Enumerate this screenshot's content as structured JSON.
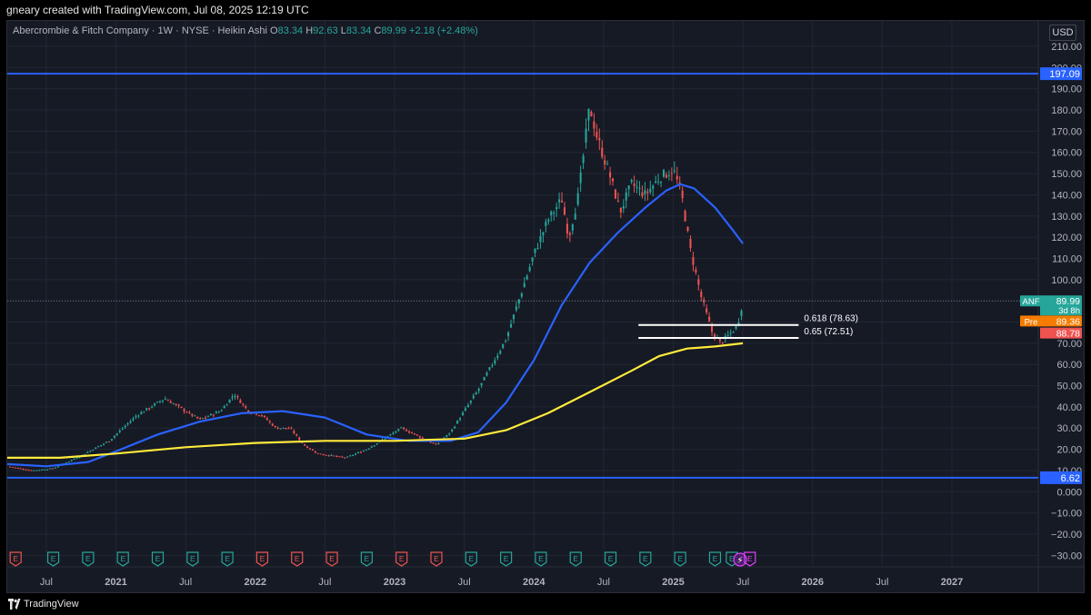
{
  "watermark": "gneary created with TradingView.com, Jul 08, 2025 12:19 UTC",
  "legend": {
    "title": "Abercrombie & Fitch Company · 1W · NYSE · Heikin Ashi",
    "o_label": "O",
    "o_value": "83.34",
    "h_label": "H",
    "h_value": "92.63",
    "l_label": "L",
    "l_value": "83.34",
    "c_label": "C",
    "c_value": "89.99",
    "change": "+2.18 (+2.48%)"
  },
  "currency": "USD",
  "brand": "TradingView",
  "colors": {
    "up": "#26a69a",
    "down": "#ef5350",
    "ma_fast": "#2962ff",
    "ma_slow": "#ffeb3b",
    "hline": "#2962ff",
    "fib": "#ffffff",
    "premarket": "#f57c00"
  },
  "chart_data": {
    "type": "candlestick",
    "ylim": [
      -35,
      222
    ],
    "y_ticks": [
      "210.00",
      "200.00",
      "190.00",
      "180.00",
      "170.00",
      "160.00",
      "150.00",
      "140.00",
      "130.00",
      "120.00",
      "110.00",
      "100.00",
      "90.00",
      "80.00",
      "70.00",
      "60.00",
      "50.00",
      "40.00",
      "30.00",
      "20.00",
      "10.00",
      "0.000",
      "−10.00",
      "−20.00",
      "−30.00"
    ],
    "y_tick_values": [
      210,
      200,
      190,
      180,
      170,
      160,
      150,
      140,
      130,
      120,
      110,
      100,
      90,
      80,
      70,
      60,
      50,
      40,
      30,
      20,
      10,
      0,
      -10,
      -20,
      -30
    ],
    "x_ticks": [
      {
        "label": "Jul",
        "t": 2020.5
      },
      {
        "label": "2021",
        "t": 2021.0
      },
      {
        "label": "Jul",
        "t": 2021.5
      },
      {
        "label": "2022",
        "t": 2022.0
      },
      {
        "label": "Jul",
        "t": 2022.5
      },
      {
        "label": "2023",
        "t": 2023.0
      },
      {
        "label": "Jul",
        "t": 2023.5
      },
      {
        "label": "2024",
        "t": 2024.0
      },
      {
        "label": "Jul",
        "t": 2024.5
      },
      {
        "label": "2025",
        "t": 2025.0
      },
      {
        "label": "Jul",
        "t": 2025.5
      },
      {
        "label": "2026",
        "t": 2026.0
      },
      {
        "label": "Jul",
        "t": 2026.5
      },
      {
        "label": "2027",
        "t": 2027.0
      }
    ],
    "xlim": [
      2020.22,
      2027.62
    ],
    "price_path": [
      [
        2020.22,
        12
      ],
      [
        2020.4,
        10
      ],
      [
        2020.55,
        11
      ],
      [
        2020.75,
        17
      ],
      [
        2020.95,
        24
      ],
      [
        2021.15,
        36
      ],
      [
        2021.35,
        44
      ],
      [
        2021.45,
        40
      ],
      [
        2021.6,
        34
      ],
      [
        2021.75,
        38
      ],
      [
        2021.85,
        46
      ],
      [
        2021.95,
        38
      ],
      [
        2022.05,
        36
      ],
      [
        2022.15,
        30
      ],
      [
        2022.25,
        30
      ],
      [
        2022.35,
        22
      ],
      [
        2022.45,
        18
      ],
      [
        2022.55,
        17
      ],
      [
        2022.65,
        16
      ],
      [
        2022.8,
        20
      ],
      [
        2022.95,
        26
      ],
      [
        2023.05,
        30
      ],
      [
        2023.15,
        27
      ],
      [
        2023.3,
        22
      ],
      [
        2023.4,
        28
      ],
      [
        2023.5,
        38
      ],
      [
        2023.6,
        48
      ],
      [
        2023.7,
        60
      ],
      [
        2023.8,
        72
      ],
      [
        2023.9,
        92
      ],
      [
        2024.0,
        112
      ],
      [
        2024.1,
        128
      ],
      [
        2024.2,
        138
      ],
      [
        2024.25,
        120
      ],
      [
        2024.32,
        140
      ],
      [
        2024.4,
        182
      ],
      [
        2024.45,
        168
      ],
      [
        2024.55,
        148
      ],
      [
        2024.62,
        132
      ],
      [
        2024.7,
        145
      ],
      [
        2024.8,
        140
      ],
      [
        2024.9,
        148
      ],
      [
        2025.0,
        152
      ],
      [
        2025.06,
        140
      ],
      [
        2025.12,
        115
      ],
      [
        2025.2,
        92
      ],
      [
        2025.28,
        75
      ],
      [
        2025.34,
        70
      ],
      [
        2025.4,
        74
      ],
      [
        2025.46,
        78
      ],
      [
        2025.5,
        90
      ]
    ],
    "series": [
      {
        "name": "",
        "color": "#2962ff",
        "points": [
          [
            2020.22,
            13
          ],
          [
            2020.5,
            12
          ],
          [
            2020.8,
            14
          ],
          [
            2021.0,
            19
          ],
          [
            2021.3,
            27
          ],
          [
            2021.6,
            33
          ],
          [
            2021.9,
            37
          ],
          [
            2022.2,
            38
          ],
          [
            2022.5,
            35
          ],
          [
            2022.8,
            27
          ],
          [
            2023.1,
            24
          ],
          [
            2023.4,
            24
          ],
          [
            2023.6,
            28
          ],
          [
            2023.8,
            42
          ],
          [
            2024.0,
            62
          ],
          [
            2024.2,
            88
          ],
          [
            2024.4,
            108
          ],
          [
            2024.6,
            122
          ],
          [
            2024.8,
            134
          ],
          [
            2024.95,
            142
          ],
          [
            2025.05,
            145
          ],
          [
            2025.15,
            143
          ],
          [
            2025.3,
            134
          ],
          [
            2025.42,
            124
          ],
          [
            2025.5,
            117
          ]
        ]
      },
      {
        "name": "",
        "color": "#ffeb3b",
        "points": [
          [
            2020.22,
            16
          ],
          [
            2020.6,
            16
          ],
          [
            2021.0,
            18
          ],
          [
            2021.5,
            21
          ],
          [
            2022.0,
            23
          ],
          [
            2022.5,
            24
          ],
          [
            2023.0,
            24
          ],
          [
            2023.5,
            25
          ],
          [
            2023.8,
            29
          ],
          [
            2024.1,
            37
          ],
          [
            2024.4,
            47
          ],
          [
            2024.7,
            57
          ],
          [
            2024.9,
            64
          ],
          [
            2025.1,
            67.5
          ],
          [
            2025.3,
            68.5
          ],
          [
            2025.5,
            70
          ]
        ]
      }
    ],
    "horizontal_lines": [
      {
        "value": 197.09,
        "label": "197.09"
      },
      {
        "value": 6.62,
        "label": "6.62"
      }
    ],
    "fib_levels": [
      {
        "value": 78.63,
        "label": "0.618 (78.63)",
        "t_start": 2024.75,
        "t_end": 2025.9
      },
      {
        "value": 72.51,
        "label": "0.65 (72.51)",
        "t_start": 2024.75,
        "t_end": 2025.9
      }
    ],
    "price_tags": [
      {
        "value": 89.99,
        "label": "89.99",
        "symbol": "ANF",
        "sub": "3d 8h",
        "color": "#26a69a"
      },
      {
        "value": 80.5,
        "label": "89.36",
        "symbol": "Pre",
        "color": "#f57c00"
      },
      {
        "value": 74.8,
        "label": "88.78",
        "color": "#ef5350"
      }
    ],
    "current_price": 89.99,
    "earnings_markers": [
      {
        "t": 2020.28,
        "label": "E",
        "type": "red"
      },
      {
        "t": 2020.55,
        "label": "E",
        "type": "green"
      },
      {
        "t": 2020.8,
        "label": "E",
        "type": "green"
      },
      {
        "t": 2021.05,
        "label": "E",
        "type": "green"
      },
      {
        "t": 2021.3,
        "label": "E",
        "type": "green"
      },
      {
        "t": 2021.55,
        "label": "E",
        "type": "green"
      },
      {
        "t": 2021.8,
        "label": "E",
        "type": "green"
      },
      {
        "t": 2022.05,
        "label": "E",
        "type": "red"
      },
      {
        "t": 2022.3,
        "label": "E",
        "type": "red"
      },
      {
        "t": 2022.55,
        "label": "E",
        "type": "red"
      },
      {
        "t": 2022.8,
        "label": "E",
        "type": "green"
      },
      {
        "t": 2023.05,
        "label": "E",
        "type": "red"
      },
      {
        "t": 2023.3,
        "label": "E",
        "type": "red"
      },
      {
        "t": 2023.55,
        "label": "E",
        "type": "green"
      },
      {
        "t": 2023.8,
        "label": "E",
        "type": "green"
      },
      {
        "t": 2024.05,
        "label": "E",
        "type": "green"
      },
      {
        "t": 2024.3,
        "label": "E",
        "type": "green"
      },
      {
        "t": 2024.55,
        "label": "E",
        "type": "green"
      },
      {
        "t": 2024.8,
        "label": "E",
        "type": "green"
      },
      {
        "t": 2025.05,
        "label": "E",
        "type": "green"
      },
      {
        "t": 2025.3,
        "label": "E",
        "type": "green"
      },
      {
        "t": 2025.42,
        "label": "E",
        "type": "green"
      },
      {
        "t": 2025.48,
        "label": "E",
        "type": "special"
      },
      {
        "t": 2025.55,
        "label": "E",
        "type": "purple"
      }
    ]
  }
}
